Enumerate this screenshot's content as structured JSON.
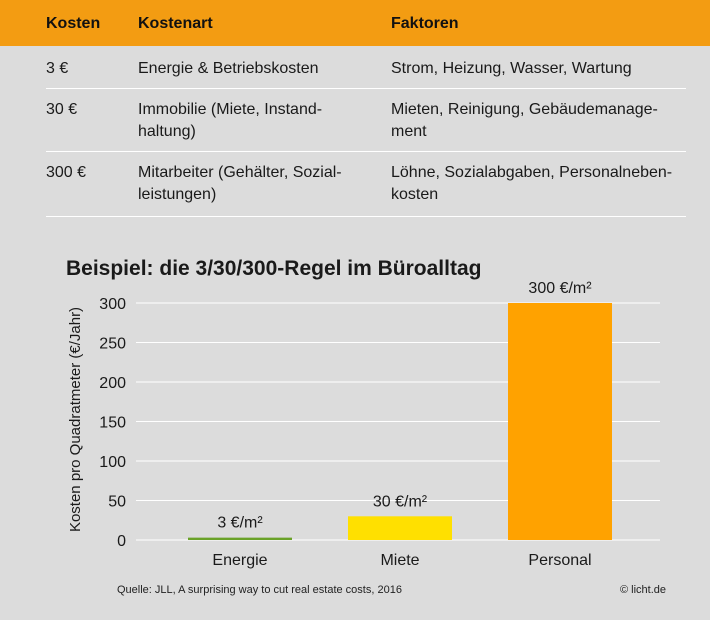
{
  "table": {
    "headers": [
      "Kosten",
      "Kostenart",
      "Faktoren"
    ],
    "rows": [
      {
        "kosten": "3 €",
        "kostenart": [
          "Energie & Betriebskosten"
        ],
        "faktoren": [
          "Strom, Heizung, Wasser, Wartung"
        ]
      },
      {
        "kosten": "30 €",
        "kostenart": [
          "Immobilie (Miete, Instand-",
          "haltung)"
        ],
        "faktoren": [
          "Mieten, Reinigung, Gebäudemanage-",
          "ment"
        ]
      },
      {
        "kosten": "300 €",
        "kostenart": [
          "Mitarbeiter (Gehälter, Sozial-",
          "leistungen)"
        ],
        "faktoren": [
          "Löhne, Sozialabgaben, Personalneben-",
          "kosten"
        ]
      }
    ]
  },
  "chart_data": {
    "type": "bar",
    "title": "Beispiel: die 3/30/300-Regel im Büroalltag",
    "ylabel": "Kosten pro Quadratmeter (€/Jahr)",
    "xlabel": "",
    "categories": [
      "Energie",
      "Miete",
      "Personal"
    ],
    "values": [
      3,
      30,
      300
    ],
    "data_labels": [
      "3 €/m²",
      "30 €/m²",
      "300 €/m²"
    ],
    "colors": [
      "#6aa229",
      "#ffe000",
      "#ffa200"
    ],
    "ylim": [
      0,
      300
    ],
    "yticks": [
      0,
      50,
      100,
      150,
      200,
      250,
      300
    ],
    "grid": true,
    "grid_color": "#ffffff"
  },
  "footer": {
    "source": "Quelle: JLL, A surprising way to cut real estate costs, 2016",
    "copyright": "© licht.de"
  },
  "colors": {
    "header_bg": "#f39c12",
    "page_bg": "#dcdcdc"
  }
}
